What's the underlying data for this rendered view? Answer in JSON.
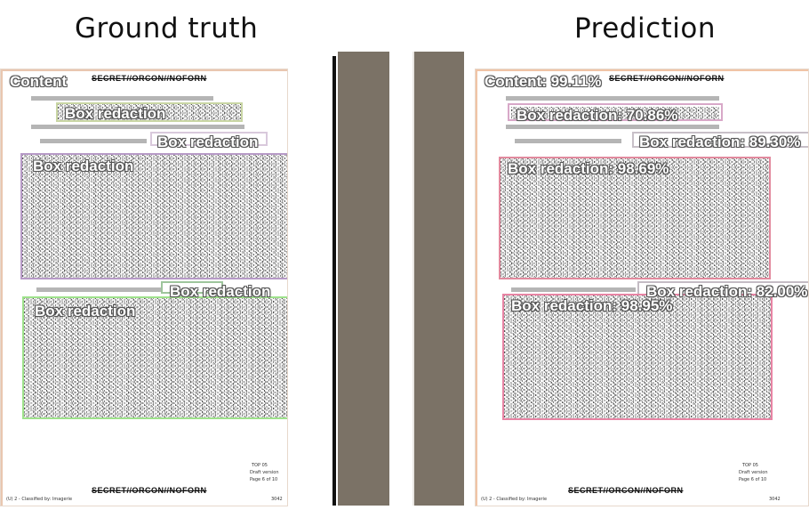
{
  "titles": {
    "left": "Ground truth",
    "right": "Prediction"
  },
  "ground_truth": {
    "labels": {
      "content": "Content",
      "box1": "Box redaction",
      "box2": "Box redaction",
      "box3": "Box redaction",
      "box4": "Box redaction",
      "box5": "Box redaction"
    }
  },
  "prediction": {
    "labels": {
      "content": "Content: 99.11%",
      "box1": "Box redaction: 70.86%",
      "box2": "Box redaction: 89.30%",
      "box3": "Box redaction: 98.69%",
      "box4": "Box redaction: 82.00%",
      "box5": "Box redaction: 98.95%"
    }
  },
  "document": {
    "header": "SECRET//ORCON//NOFORN",
    "footer": "SECRET//ORCON//NOFORN",
    "footer_left": "(U) 2 - Classified by: Imagerie",
    "footer_right": "3042",
    "page_info": [
      "TOP 05",
      "Draft version",
      "Page 6 of 10"
    ]
  },
  "colors": {
    "gt_content": "#e9c7b0",
    "gt_box1": "#c9d6a4",
    "gt_box2": "#d9c9dc",
    "gt_box3": "#b79ac7",
    "gt_box4": "#9ec59c",
    "gt_box5": "#9ee28b",
    "pr_content": "#f0c4a6",
    "pr_box1": "#d8a8c8",
    "pr_box2": "#c8c0c8",
    "pr_box3": "#e28a9e",
    "pr_box4": "#c4bcc4",
    "pr_box5": "#e884a4"
  }
}
